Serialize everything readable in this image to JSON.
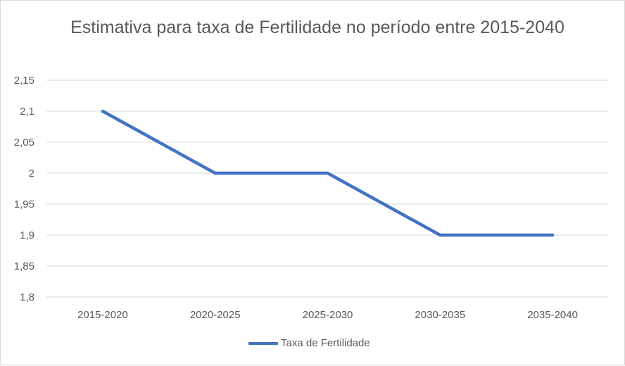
{
  "chart_data": {
    "type": "line",
    "title": "Estimativa para taxa de Fertilidade no período entre 2015-2040",
    "xlabel": "",
    "ylabel": "",
    "categories": [
      "2015-2020",
      "2020-2025",
      "2025-2030",
      "2030-2035",
      "2035-2040"
    ],
    "series": [
      {
        "name": "Taxa de Fertilidade",
        "values": [
          2.1,
          2.0,
          2.0,
          1.9,
          1.9
        ],
        "color": "#4472c4"
      }
    ],
    "ylim": [
      1.8,
      2.15
    ],
    "yticks": [
      "1,8",
      "1,85",
      "1,9",
      "1,95",
      "2",
      "2,05",
      "2,1",
      "2,15"
    ],
    "grid": true,
    "legend_position": "bottom"
  }
}
